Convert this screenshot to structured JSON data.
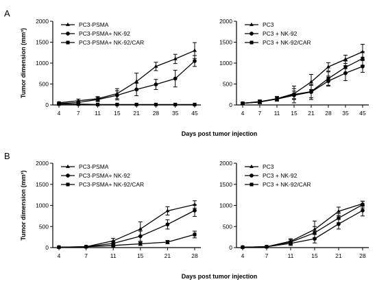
{
  "panels": [
    {
      "letter": "A",
      "xlabel": "Days post tumor injection"
    },
    {
      "letter": "B",
      "xlabel": "Days post tumor injection"
    }
  ],
  "chart_data": [
    {
      "type": "line",
      "panel": "A",
      "ylabel": "Tumor dimension  (mm³)",
      "xlabel": "",
      "ylim": [
        0,
        2000
      ],
      "yticks": [
        0,
        500,
        1000,
        1500,
        2000
      ],
      "categories": [
        "4",
        "7",
        "11",
        "15",
        "21",
        "28",
        "35",
        "45"
      ],
      "legend_position": "top-left",
      "series": [
        {
          "name": "PC3-PSMA",
          "marker": "triangle",
          "values": [
            50,
            100,
            150,
            270,
            560,
            920,
            1100,
            1300
          ],
          "errors": [
            25,
            40,
            50,
            120,
            200,
            100,
            110,
            190
          ]
        },
        {
          "name": "PC3-PSMA+ NK-92",
          "marker": "circle",
          "values": [
            30,
            60,
            130,
            230,
            370,
            490,
            630,
            1050
          ],
          "errors": [
            20,
            40,
            50,
            110,
            150,
            120,
            200,
            130
          ]
        },
        {
          "name": "PC3-PSMA+ NK-92/CAR",
          "marker": "square",
          "values": [
            20,
            20,
            10,
            10,
            10,
            10,
            10,
            10
          ],
          "errors": [
            10,
            10,
            5,
            5,
            5,
            5,
            5,
            5
          ]
        }
      ]
    },
    {
      "type": "line",
      "panel": "A",
      "ylabel": "",
      "xlabel": "",
      "ylim": [
        0,
        2000
      ],
      "yticks": [
        0,
        500,
        1000,
        1500,
        2000
      ],
      "categories": [
        "4",
        "7",
        "11",
        "15",
        "21",
        "28",
        "35",
        "45"
      ],
      "legend_position": "top-left",
      "series": [
        {
          "name": "PC3",
          "marker": "triangle",
          "values": [
            40,
            80,
            150,
            270,
            550,
            910,
            1090,
            1270
          ],
          "errors": [
            20,
            40,
            50,
            120,
            180,
            100,
            100,
            180
          ]
        },
        {
          "name": "PC3 + NK-92",
          "marker": "circle",
          "values": [
            40,
            70,
            140,
            230,
            310,
            570,
            760,
            920
          ],
          "errors": [
            20,
            40,
            50,
            100,
            180,
            120,
            180,
            140
          ]
        },
        {
          "name": "PC3 + NK-92/CAR",
          "marker": "square",
          "values": [
            40,
            70,
            150,
            250,
            320,
            630,
            900,
            1110
          ],
          "errors": [
            20,
            40,
            50,
            200,
            150,
            160,
            150,
            160
          ]
        }
      ]
    },
    {
      "type": "line",
      "panel": "B",
      "ylabel": "Tumor dimension  (mm³)",
      "xlabel": "",
      "ylim": [
        0,
        2000
      ],
      "yticks": [
        0,
        500,
        1000,
        1500,
        2000
      ],
      "categories": [
        "4",
        "7",
        "11",
        "15",
        "21",
        "28"
      ],
      "legend_position": "top-left",
      "series": [
        {
          "name": "PC3-PSMA",
          "marker": "triangle",
          "values": [
            10,
            20,
            160,
            440,
            870,
            1020
          ],
          "errors": [
            5,
            10,
            60,
            170,
            100,
            90
          ]
        },
        {
          "name": "PC3-PSMA+ NK-92",
          "marker": "circle",
          "values": [
            10,
            20,
            100,
            270,
            550,
            880
          ],
          "errors": [
            5,
            10,
            50,
            120,
            110,
            140
          ]
        },
        {
          "name": "PC3-PSMA+ NK-92/CAR",
          "marker": "square",
          "values": [
            10,
            20,
            50,
            90,
            130,
            310
          ],
          "errors": [
            5,
            10,
            20,
            40,
            40,
            80
          ]
        }
      ]
    },
    {
      "type": "line",
      "panel": "B",
      "ylabel": "",
      "xlabel": "",
      "ylim": [
        0,
        2000
      ],
      "yticks": [
        0,
        500,
        1000,
        1500,
        2000
      ],
      "categories": [
        "4",
        "7",
        "11",
        "15",
        "21",
        "28"
      ],
      "legend_position": "top-left",
      "series": [
        {
          "name": "PC3",
          "marker": "triangle",
          "values": [
            10,
            20,
            150,
            430,
            860,
            1040
          ],
          "errors": [
            5,
            10,
            60,
            200,
            100,
            60
          ]
        },
        {
          "name": "PC3 + NK-92",
          "marker": "circle",
          "values": [
            10,
            20,
            100,
            210,
            560,
            880
          ],
          "errors": [
            5,
            10,
            50,
            100,
            120,
            130
          ]
        },
        {
          "name": "PC3 + NK-92/CAR",
          "marker": "square",
          "values": [
            10,
            20,
            130,
            350,
            700,
            1020
          ],
          "errors": [
            5,
            10,
            60,
            150,
            110,
            80
          ]
        }
      ]
    }
  ]
}
